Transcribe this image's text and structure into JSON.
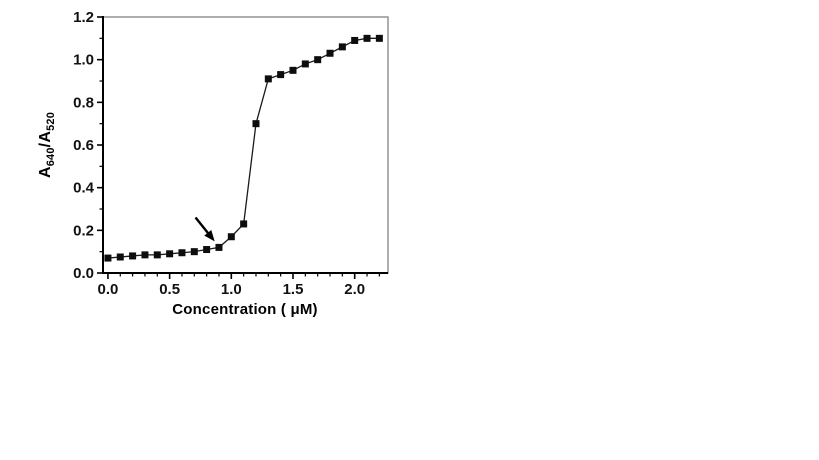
{
  "figure": {
    "background": "#ffffff",
    "frame_color": "#8c8c8c",
    "axis_color": "#000000",
    "text_color": "#111111"
  },
  "chart_data": {
    "type": "line",
    "title": "",
    "xlabel": "Concentration ( μM)",
    "ylabel": "A640/A520",
    "ylabel_parts": [
      {
        "text": "A",
        "sub": false
      },
      {
        "text": "640",
        "sub": true
      },
      {
        "text": "/A",
        "sub": false
      },
      {
        "text": "520",
        "sub": true
      }
    ],
    "x": [
      0.0,
      0.1,
      0.2,
      0.3,
      0.4,
      0.5,
      0.6,
      0.7,
      0.8,
      0.9,
      1.0,
      1.1,
      1.2,
      1.3,
      1.4,
      1.5,
      1.6,
      1.7,
      1.8,
      1.9,
      2.0,
      2.1,
      2.2
    ],
    "y": [
      0.07,
      0.075,
      0.08,
      0.085,
      0.085,
      0.09,
      0.095,
      0.1,
      0.11,
      0.12,
      0.17,
      0.23,
      0.7,
      0.91,
      0.93,
      0.95,
      0.98,
      1.0,
      1.03,
      1.06,
      1.09,
      1.1,
      1.1
    ],
    "marker": "filled-square",
    "marker_size": 7,
    "marker_color": "#0d0d0d",
    "line_color": "#1a1a1a",
    "line_width": 1.3,
    "xlim": [
      -0.04,
      2.27
    ],
    "ylim": [
      0,
      1.2
    ],
    "x_tick_values": [
      0.0,
      0.5,
      1.0,
      1.5,
      2.0
    ],
    "x_tick_labels": [
      "0.0",
      "0.5",
      "1.0",
      "1.5",
      "2.0"
    ],
    "x_minor_step": 0.1,
    "x_minor_range": [
      0.1,
      2.2
    ],
    "y_tick_values": [
      0.0,
      0.2,
      0.4,
      0.6,
      0.8,
      1.0,
      1.2
    ],
    "y_tick_labels": [
      "0.0",
      "0.2",
      "0.4",
      "0.6",
      "0.8",
      "1.0",
      "1.2"
    ],
    "y_minor_step": 0.1,
    "y_minor_range": [
      0.1,
      1.1
    ],
    "grid": "off",
    "legend": "none",
    "annotations": [
      {
        "type": "arrow",
        "from_xy": [
          0.71,
          0.26
        ],
        "to_xy": [
          0.865,
          0.148
        ],
        "color": "#000000",
        "width": 2.4
      }
    ]
  }
}
